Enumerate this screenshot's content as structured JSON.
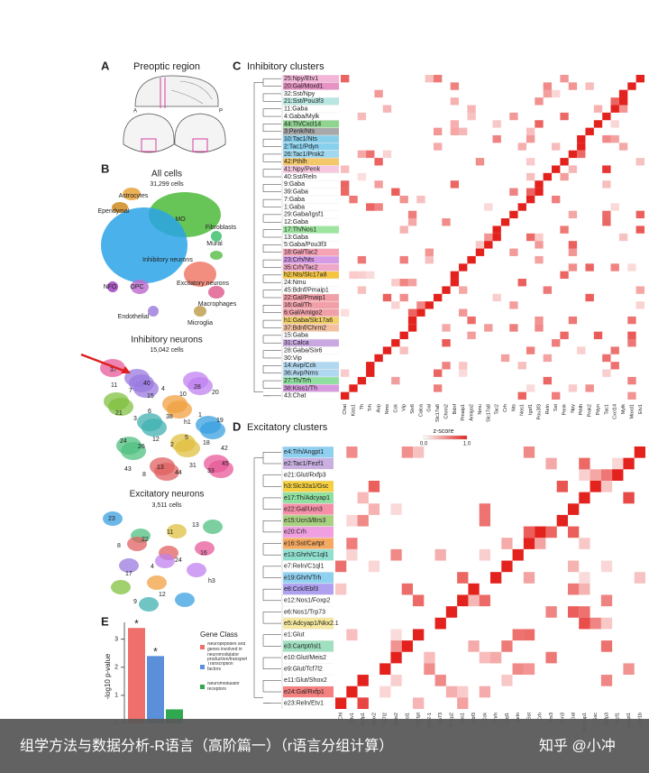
{
  "panel_a": {
    "label": "A",
    "title": "Preoptic region",
    "axis_marks": [
      "A",
      "P"
    ]
  },
  "panel_b": {
    "label": "B",
    "all": {
      "title": "All cells",
      "count": "31,299 cells",
      "cell_types": [
        "Astrocytes",
        "Ependymal",
        "MO",
        "Fibroblasts",
        "Mural",
        "Inhibitory neurons",
        "Excitatory neurons",
        "NFO",
        "OPC",
        "Macrophages",
        "Endothelial",
        "Microglia"
      ]
    },
    "inhibitory": {
      "title": "Inhibitory neurons",
      "count": "15,042 cells",
      "clusters": [
        "37",
        "15",
        "h1",
        "42",
        "8",
        "10",
        "19",
        "26",
        "44",
        "20",
        "3",
        "2",
        "33",
        "7",
        "38",
        "18",
        "43",
        "4",
        "1",
        "24",
        "13",
        "28",
        "21",
        "12",
        "31",
        "11",
        "6",
        "5",
        "45",
        "40"
      ]
    },
    "excitatory": {
      "title": "Excitatory neurons",
      "count": "3,511 cells",
      "clusters": [
        "23",
        "22",
        "24",
        "h3",
        "9",
        "11",
        "16",
        "17",
        "12",
        "13",
        "8",
        "4"
      ]
    }
  },
  "panel_c": {
    "label": "C",
    "title": "Inhibitory clusters",
    "clusters": [
      {
        "name": "25:Npy/Etv1",
        "color": "#f4b6d8"
      },
      {
        "name": "20:Gal/Moxd1",
        "color": "#e891c4"
      },
      {
        "name": "32:Sst/Npy",
        "color": "#ffffff"
      },
      {
        "name": "21:Sst/Pou3f3",
        "color": "#b8e6e0"
      },
      {
        "name": "11:Gaba",
        "color": "#ffffff"
      },
      {
        "name": "4:Gaba/Mylk",
        "color": "#ffffff"
      },
      {
        "name": "44:Th/Cxcl14",
        "color": "#8fd48f"
      },
      {
        "name": "3:Penk/Nts",
        "color": "#a8a8a8"
      },
      {
        "name": "10:Tac1/Nts",
        "color": "#87ceeb"
      },
      {
        "name": "2:Tac1/Pdyn",
        "color": "#87d0ee"
      },
      {
        "name": "26:Tac1/Prok2",
        "color": "#9fd8ef"
      },
      {
        "name": "42:Pthlh",
        "color": "#f3c86a"
      },
      {
        "name": "41:Npy/Penk",
        "color": "#f7c9e0"
      },
      {
        "name": "40:Sst/Reln",
        "color": "#ffffff"
      },
      {
        "name": "9:Gaba",
        "color": "#ffffff"
      },
      {
        "name": "39:Gaba",
        "color": "#ffffff"
      },
      {
        "name": "7:Gaba",
        "color": "#ffffff"
      },
      {
        "name": "1:Gaba",
        "color": "#ffffff"
      },
      {
        "name": "29:Gaba/Igsf1",
        "color": "#ffffff"
      },
      {
        "name": "12:Gaba",
        "color": "#ffffff"
      },
      {
        "name": "17:Th/Nos1",
        "color": "#9ee6a0"
      },
      {
        "name": "13:Gaba",
        "color": "#ffffff"
      },
      {
        "name": "5:Gaba/Pou3f3",
        "color": "#ffffff"
      },
      {
        "name": "18:Gal/Tac2",
        "color": "#f5a3b5"
      },
      {
        "name": "23:Crh/Nts",
        "color": "#d59be6"
      },
      {
        "name": "35:Crh/Tac2",
        "color": "#f0a8c8"
      },
      {
        "name": "h2:Nts/Slc17a8",
        "color": "#f5c542"
      },
      {
        "name": "24:Nmu",
        "color": "#ffffff"
      },
      {
        "name": "45:Bdnf/Pmaip1",
        "color": "#ffffff"
      },
      {
        "name": "22:Gal/Pmaip1",
        "color": "#f2a0a8"
      },
      {
        "name": "16:Gal/Th",
        "color": "#f2a0a8"
      },
      {
        "name": "6:Gal/Amigo2",
        "color": "#f2a0a8"
      },
      {
        "name": "h1:Gaba/Slc17a6",
        "color": "#f3d06a"
      },
      {
        "name": "37:Bdnf/Chrm2",
        "color": "#f5c0a0"
      },
      {
        "name": "15:Gaba",
        "color": "#ffffff"
      },
      {
        "name": "31:Calca",
        "color": "#c9a8e0"
      },
      {
        "name": "28:Gaba/Six6",
        "color": "#ffffff"
      },
      {
        "name": "30:Vip",
        "color": "#ffffff"
      },
      {
        "name": "14:Avp/Cck",
        "color": "#b0d8f0"
      },
      {
        "name": "36:Avp/Nms",
        "color": "#b0d8f0"
      },
      {
        "name": "27:Th/Trh",
        "color": "#8fe0a0"
      },
      {
        "name": "38:Kiss1/Th",
        "color": "#d99be0"
      },
      {
        "name": "43:Chat",
        "color": "#ffffff"
      }
    ],
    "genes": [
      "Chat",
      "Kiss1",
      "Th",
      "Trh",
      "Avp",
      "Nms",
      "Cck",
      "Vip",
      "Six6",
      "Calca",
      "Gal",
      "Slc17a6",
      "Chrm2",
      "Bdnf",
      "Pmaip1",
      "Amigo2",
      "Nmu",
      "Slc17a8",
      "Tac2",
      "Crh",
      "Nts",
      "Nos1",
      "Igsf1",
      "Pou3f3",
      "Reln",
      "Sst",
      "Penk",
      "Npy",
      "Pthlh",
      "Prok2",
      "Pdyn",
      "Tac1",
      "Cxcl14",
      "Mylk",
      "Moxd1",
      "Etv1"
    ],
    "legend": {
      "title": "z-score",
      "min": "0.0",
      "max": "1.0"
    }
  },
  "panel_d": {
    "label": "D",
    "title": "Excitatory clusters",
    "clusters": [
      {
        "name": "e4:Trh/Angpt1",
        "color": "#8fd0f0"
      },
      {
        "name": "e2:Tac1/Fezf1",
        "color": "#c9b0e0"
      },
      {
        "name": "e21:Glut/Rxfp3",
        "color": "#ffffff"
      },
      {
        "name": "h3:Slc32a1/Gsc",
        "color": "#f5d040"
      },
      {
        "name": "e17:Th/Adcyap1",
        "color": "#8fe0a0"
      },
      {
        "name": "e22:Gal/Ucn3",
        "color": "#f590a8"
      },
      {
        "name": "e15:Ucn3/Brs3",
        "color": "#a8d080"
      },
      {
        "name": "e20:Crh",
        "color": "#f0a0e0"
      },
      {
        "name": "e16:Sst/Cartpt",
        "color": "#f5a860"
      },
      {
        "name": "e13:Ghrh/C1ql1",
        "color": "#90e0d0"
      },
      {
        "name": "e7:Reln/C1ql1",
        "color": "#ffffff"
      },
      {
        "name": "e19:Ghrh/Trh",
        "color": "#90d0f0"
      },
      {
        "name": "e8:Cck/Ebf3",
        "color": "#b0a0f0"
      },
      {
        "name": "e12:Nos1/Foxp2",
        "color": "#ffffff"
      },
      {
        "name": "e6:Nos1/Trp73",
        "color": "#ffffff"
      },
      {
        "name": "e5:Adcyap1/Nkx2.1",
        "color": "#f5e8a0"
      },
      {
        "name": "e1:Glut",
        "color": "#ffffff"
      },
      {
        "name": "e3:Cartpt/Isl1",
        "color": "#a0e0c0"
      },
      {
        "name": "e10:Glut/Meis2",
        "color": "#ffffff"
      },
      {
        "name": "e9:Glut/Tcf7l2",
        "color": "#ffffff"
      },
      {
        "name": "e11:Glut/Shox2",
        "color": "#ffffff"
      },
      {
        "name": "e24:Gal/Rxfp1",
        "color": "#f58080"
      },
      {
        "name": "e23:Reln/Etv1",
        "color": "#ffffff"
      }
    ],
    "genes": [
      "Chl",
      "Etv1",
      "Rxfp1",
      "Shox2",
      "Tcf7l2",
      "Meis2",
      "Isl1",
      "Cartpt",
      "Nkx2-1",
      "Trp73",
      "Foxp2",
      "Nos1",
      "Ebf3",
      "Cck",
      "Ghrh",
      "C1ql1",
      "Reln",
      "Sst",
      "Crh",
      "Brs3",
      "Ucn3",
      "Gal",
      "Adcyap1",
      "Gsc",
      "Rxfp3",
      "Fezf1",
      "Angpt1",
      "Etv1b"
    ]
  },
  "panel_e": {
    "label": "E",
    "y_label": "-log10 p-value",
    "ylim": [
      0,
      3.6
    ],
    "yticks": [
      0,
      1,
      2,
      3
    ],
    "legend_title": "Gene Class",
    "bars": [
      {
        "name": "Neuropeptides and genes involved in neuromodulator production/transport",
        "color": "#ef6f6c",
        "value": 3.4,
        "significance": "*"
      },
      {
        "name": "Transcription factors",
        "color": "#5b8fd9",
        "value": 2.4,
        "significance": "*"
      },
      {
        "name": "Neuromodulator receptors",
        "color": "#2fa84f",
        "value": 0.5
      }
    ]
  },
  "footer": {
    "caption": "组学方法与数据分析-R语言（高阶篇一）（r语言分组计算）",
    "watermark": "知乎 @小冲"
  }
}
